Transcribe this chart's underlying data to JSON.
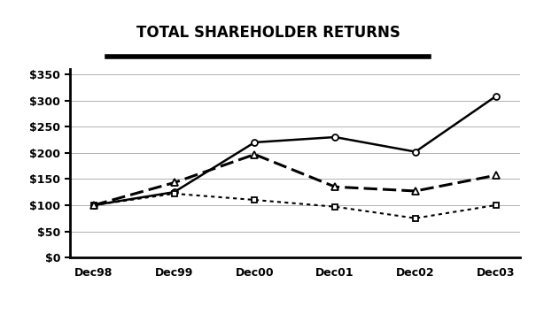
{
  "title": "TOTAL SHAREHOLDER RETURNS",
  "x_labels": [
    "Dec98",
    "Dec99",
    "Dec00",
    "Dec01",
    "Dec02",
    "Dec03"
  ],
  "carbo": [
    100,
    125,
    220,
    230,
    202,
    308
  ],
  "sp500": [
    100,
    122,
    110,
    97,
    75,
    100
  ],
  "peer": [
    100,
    143,
    197,
    135,
    127,
    157
  ],
  "ylim": [
    0,
    360
  ],
  "yticks": [
    0,
    50,
    100,
    150,
    200,
    250,
    300,
    350
  ],
  "bg_color": "#ffffff",
  "grid_color": "#b0b0b0",
  "title_fontsize": 12,
  "tick_fontsize": 9,
  "legend_fontsize": 8.5,
  "axis_fontsize": 9
}
